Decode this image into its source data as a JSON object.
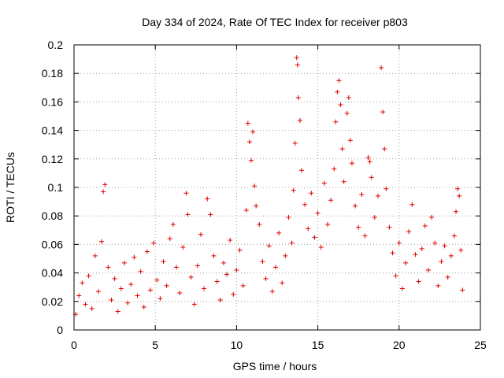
{
  "chart_data": {
    "type": "scatter",
    "title": "Day 334 of 2024, Rate Of TEC Index for receiver p803",
    "xlabel": "GPS time / hours",
    "ylabel": "ROTI / TECUs",
    "xlim": [
      0,
      25
    ],
    "ylim": [
      0,
      0.2
    ],
    "x_ticks": [
      "0",
      "5",
      "10",
      "15",
      "20",
      "25"
    ],
    "y_ticks": [
      "0",
      "0.02",
      "0.04",
      "0.06",
      "0.08",
      "0.1",
      "0.12",
      "0.14",
      "0.16",
      "0.18",
      "0.2"
    ],
    "grid": true,
    "marker": "plus",
    "series_color": "#e00000",
    "series": [
      {
        "points": [
          [
            0.1,
            0.011
          ],
          [
            0.3,
            0.024
          ],
          [
            0.5,
            0.033
          ],
          [
            0.7,
            0.018
          ],
          [
            0.9,
            0.038
          ],
          [
            1.1,
            0.015
          ],
          [
            1.3,
            0.052
          ],
          [
            1.5,
            0.027
          ],
          [
            1.7,
            0.062
          ],
          [
            1.8,
            0.097
          ],
          [
            1.9,
            0.102
          ],
          [
            2.1,
            0.044
          ],
          [
            2.3,
            0.021
          ],
          [
            2.5,
            0.036
          ],
          [
            2.7,
            0.013
          ],
          [
            2.9,
            0.029
          ],
          [
            3.1,
            0.047
          ],
          [
            3.3,
            0.019
          ],
          [
            3.5,
            0.032
          ],
          [
            3.7,
            0.051
          ],
          [
            3.9,
            0.024
          ],
          [
            4.1,
            0.041
          ],
          [
            4.3,
            0.016
          ],
          [
            4.5,
            0.055
          ],
          [
            4.7,
            0.028
          ],
          [
            4.9,
            0.061
          ],
          [
            5.1,
            0.035
          ],
          [
            5.3,
            0.022
          ],
          [
            5.5,
            0.048
          ],
          [
            5.7,
            0.031
          ],
          [
            5.9,
            0.064
          ],
          [
            6.1,
            0.074
          ],
          [
            6.3,
            0.044
          ],
          [
            6.5,
            0.026
          ],
          [
            6.7,
            0.058
          ],
          [
            6.9,
            0.096
          ],
          [
            7.0,
            0.081
          ],
          [
            7.2,
            0.037
          ],
          [
            7.4,
            0.018
          ],
          [
            7.6,
            0.045
          ],
          [
            7.8,
            0.067
          ],
          [
            8.0,
            0.029
          ],
          [
            8.2,
            0.092
          ],
          [
            8.4,
            0.081
          ],
          [
            8.6,
            0.052
          ],
          [
            8.8,
            0.034
          ],
          [
            9.0,
            0.021
          ],
          [
            9.2,
            0.047
          ],
          [
            9.4,
            0.039
          ],
          [
            9.6,
            0.063
          ],
          [
            9.8,
            0.025
          ],
          [
            10.0,
            0.042
          ],
          [
            10.2,
            0.056
          ],
          [
            10.4,
            0.031
          ],
          [
            10.6,
            0.084
          ],
          [
            10.7,
            0.145
          ],
          [
            10.8,
            0.132
          ],
          [
            10.9,
            0.119
          ],
          [
            11.0,
            0.139
          ],
          [
            11.1,
            0.101
          ],
          [
            11.2,
            0.087
          ],
          [
            11.4,
            0.074
          ],
          [
            11.6,
            0.048
          ],
          [
            11.8,
            0.036
          ],
          [
            12.0,
            0.059
          ],
          [
            12.2,
            0.027
          ],
          [
            12.4,
            0.044
          ],
          [
            12.6,
            0.068
          ],
          [
            12.8,
            0.033
          ],
          [
            13.0,
            0.052
          ],
          [
            13.2,
            0.079
          ],
          [
            13.4,
            0.061
          ],
          [
            13.5,
            0.098
          ],
          [
            13.6,
            0.131
          ],
          [
            13.7,
            0.191
          ],
          [
            13.75,
            0.186
          ],
          [
            13.8,
            0.163
          ],
          [
            13.9,
            0.147
          ],
          [
            14.0,
            0.112
          ],
          [
            14.2,
            0.088
          ],
          [
            14.4,
            0.071
          ],
          [
            14.6,
            0.096
          ],
          [
            14.8,
            0.065
          ],
          [
            15.0,
            0.082
          ],
          [
            15.2,
            0.058
          ],
          [
            15.4,
            0.103
          ],
          [
            15.6,
            0.074
          ],
          [
            15.8,
            0.091
          ],
          [
            16.0,
            0.113
          ],
          [
            16.1,
            0.146
          ],
          [
            16.2,
            0.167
          ],
          [
            16.3,
            0.175
          ],
          [
            16.4,
            0.158
          ],
          [
            16.5,
            0.127
          ],
          [
            16.6,
            0.104
          ],
          [
            16.8,
            0.152
          ],
          [
            16.9,
            0.163
          ],
          [
            17.0,
            0.133
          ],
          [
            17.1,
            0.117
          ],
          [
            17.3,
            0.087
          ],
          [
            17.5,
            0.072
          ],
          [
            17.7,
            0.095
          ],
          [
            17.9,
            0.066
          ],
          [
            18.1,
            0.121
          ],
          [
            18.2,
            0.118
          ],
          [
            18.3,
            0.107
          ],
          [
            18.5,
            0.079
          ],
          [
            18.7,
            0.094
          ],
          [
            18.9,
            0.184
          ],
          [
            19.0,
            0.153
          ],
          [
            19.1,
            0.127
          ],
          [
            19.2,
            0.099
          ],
          [
            19.4,
            0.072
          ],
          [
            19.6,
            0.054
          ],
          [
            19.8,
            0.038
          ],
          [
            20.0,
            0.061
          ],
          [
            20.2,
            0.029
          ],
          [
            20.4,
            0.047
          ],
          [
            20.6,
            0.069
          ],
          [
            20.8,
            0.088
          ],
          [
            21.0,
            0.053
          ],
          [
            21.2,
            0.034
          ],
          [
            21.4,
            0.057
          ],
          [
            21.6,
            0.073
          ],
          [
            21.8,
            0.042
          ],
          [
            22.0,
            0.079
          ],
          [
            22.2,
            0.061
          ],
          [
            22.4,
            0.031
          ],
          [
            22.6,
            0.048
          ],
          [
            22.8,
            0.059
          ],
          [
            23.0,
            0.037
          ],
          [
            23.2,
            0.052
          ],
          [
            23.4,
            0.066
          ],
          [
            23.5,
            0.083
          ],
          [
            23.6,
            0.099
          ],
          [
            23.7,
            0.094
          ],
          [
            23.8,
            0.056
          ],
          [
            23.9,
            0.028
          ]
        ]
      }
    ]
  }
}
